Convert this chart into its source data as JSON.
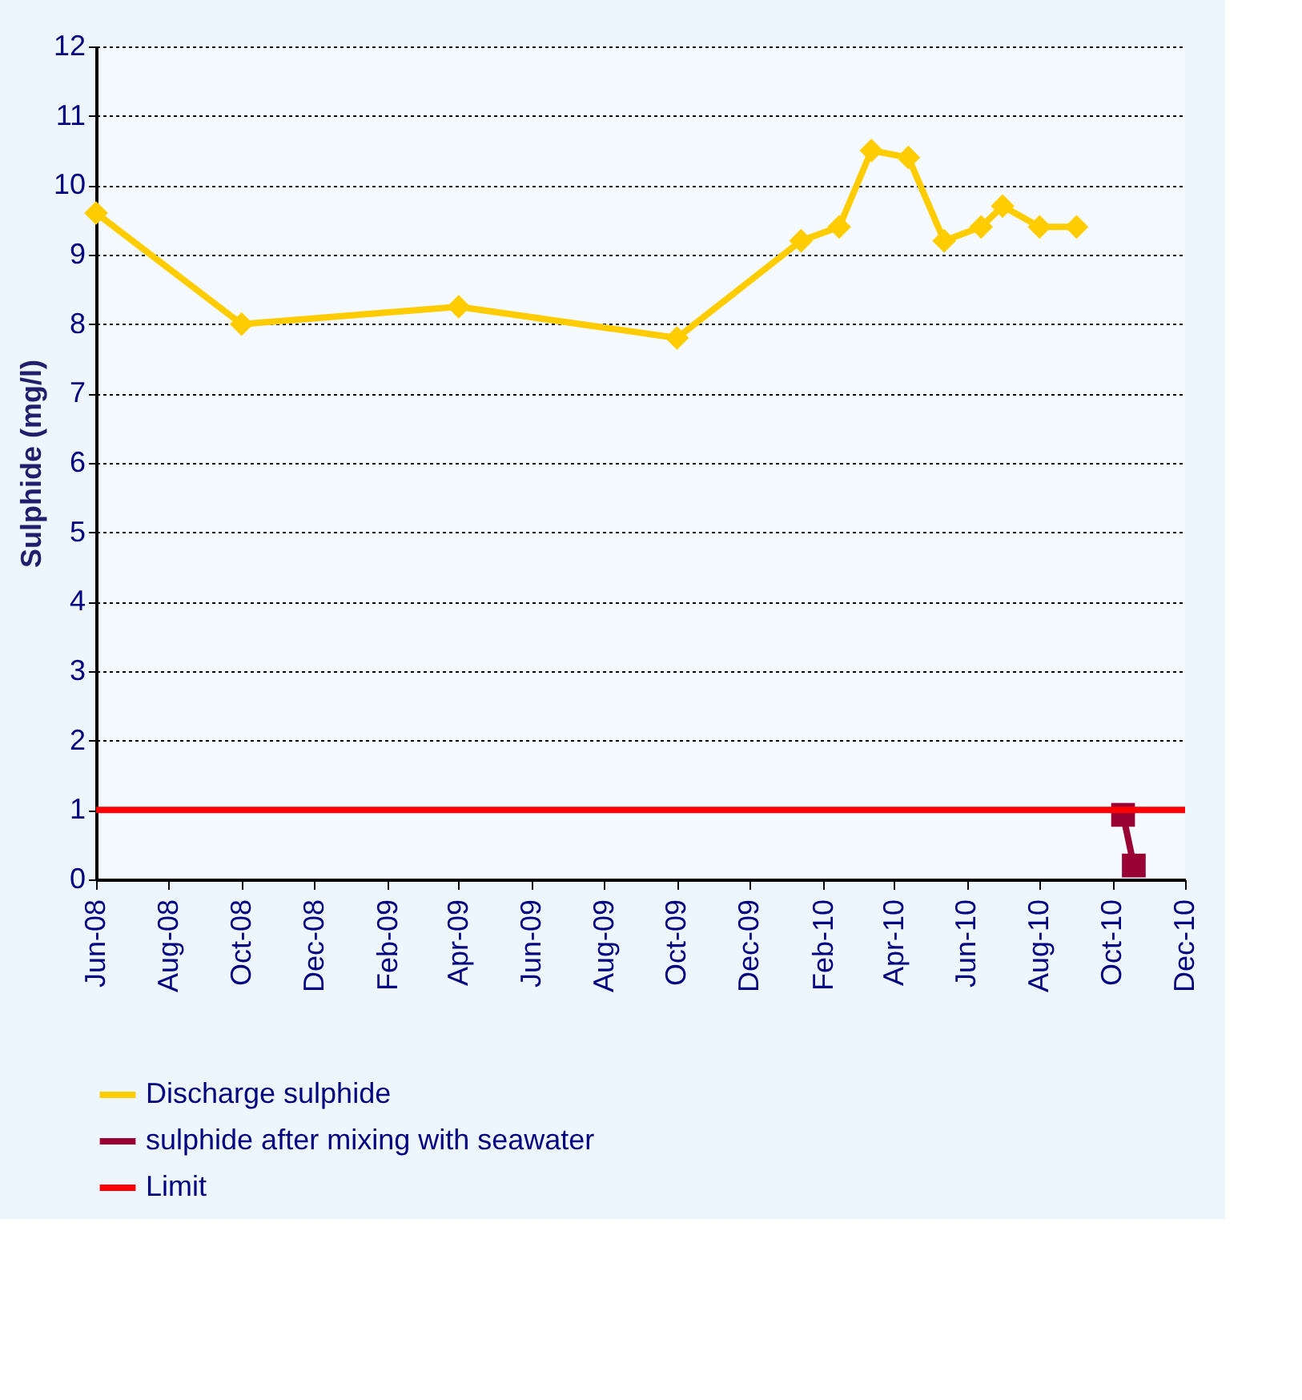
{
  "chart_data": {
    "type": "line",
    "ylabel": "Sulphide (mg/l)",
    "series": [
      {
        "name": "Discharge sulphide",
        "color": "#ffcc00",
        "marker": "diamond",
        "x": [
          "2008-06-01",
          "2008-10-01",
          "2009-04-01",
          "2009-10-01",
          "2010-01-13",
          "2010-02-14",
          "2010-03-13",
          "2010-04-13",
          "2010-05-13",
          "2010-06-13",
          "2010-07-01",
          "2010-08-01",
          "2010-09-01"
        ],
        "values": [
          9.6,
          8.0,
          8.25,
          7.8,
          9.2,
          9.4,
          10.5,
          10.4,
          9.2,
          9.4,
          9.7,
          9.4,
          9.4
        ]
      },
      {
        "name": "sulphide after mixing with seawater",
        "color": "#990033",
        "marker": "square",
        "x": [
          "2010-10-10",
          "2010-10-19"
        ],
        "values": [
          0.93,
          0.2
        ]
      },
      {
        "name": "Limit",
        "color": "#ff0000",
        "marker": "none",
        "x": [
          "2008-06-01",
          "2010-12-01"
        ],
        "values": [
          1,
          1
        ]
      }
    ],
    "xlim": [
      "2008-06-01",
      "2010-12-01"
    ],
    "xticks": [
      {
        "value": "2008-06-01",
        "label": "Jun-08"
      },
      {
        "value": "2008-08-01",
        "label": "Aug-08"
      },
      {
        "value": "2008-10-01",
        "label": "Oct-08"
      },
      {
        "value": "2008-12-01",
        "label": "Dec-08"
      },
      {
        "value": "2009-02-01",
        "label": "Feb-09"
      },
      {
        "value": "2009-04-01",
        "label": "Apr-09"
      },
      {
        "value": "2009-06-01",
        "label": "Jun-09"
      },
      {
        "value": "2009-08-01",
        "label": "Aug-09"
      },
      {
        "value": "2009-10-01",
        "label": "Oct-09"
      },
      {
        "value": "2009-12-01",
        "label": "Dec-09"
      },
      {
        "value": "2010-02-01",
        "label": "Feb-10"
      },
      {
        "value": "2010-04-01",
        "label": "Apr-10"
      },
      {
        "value": "2010-06-01",
        "label": "Jun-10"
      },
      {
        "value": "2010-08-01",
        "label": "Aug-10"
      },
      {
        "value": "2010-10-01",
        "label": "Oct-10"
      },
      {
        "value": "2010-12-01",
        "label": "Dec-10"
      }
    ],
    "ylim": [
      0,
      12
    ],
    "yticks": [
      0,
      1,
      2,
      3,
      4,
      5,
      6,
      7,
      8,
      9,
      10,
      11,
      12
    ],
    "grid": "y",
    "legend": "bottom",
    "line_style": "solid"
  }
}
